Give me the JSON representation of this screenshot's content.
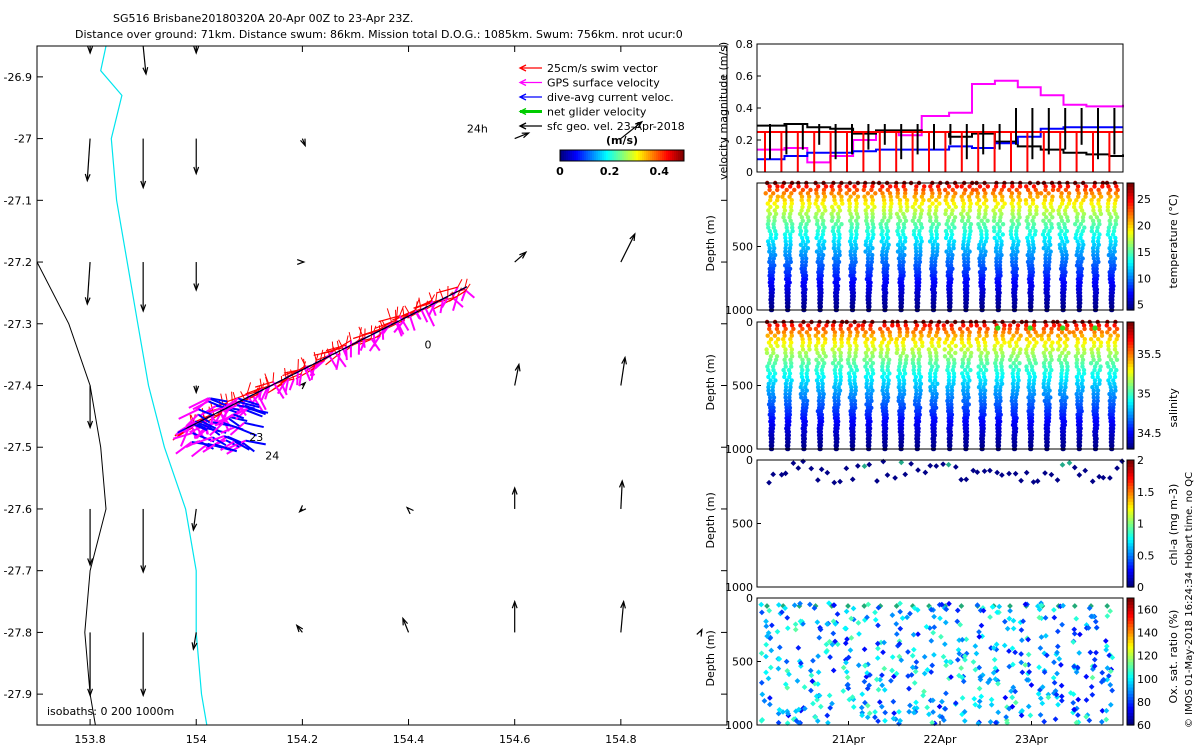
{
  "header": {
    "title_line1": "SG516 Brisbane20180320A 20-Apr 00Z to 23-Apr 23Z.",
    "title_line2": "Distance over ground: 71km. Distance swum: 86km. Mission total D.O.G.: 1085km. Swum: 756km. nrot ucur:0"
  },
  "side_note": "© IMOS 01-May-2018 16:24:34 Hobart time. no QC",
  "colors": {
    "coast": "#00e5ee",
    "isobath": "#000000",
    "swim": "#ff0000",
    "gps": "#ff00ff",
    "dive_avg": "#0000ff",
    "net": "#00cc00",
    "sfc": "#000000"
  },
  "chart_data": [
    {
      "type": "scatter",
      "name": "map",
      "xlim": [
        153.7,
        155.0
      ],
      "ylim": [
        -27.95,
        -26.85
      ],
      "xticks": [
        "153.8",
        "154",
        "154.2",
        "154.4",
        "154.6",
        "154.8"
      ],
      "xtick_values": [
        153.8,
        154.0,
        154.2,
        154.4,
        154.6,
        154.8
      ],
      "yticks": [
        "-26.9",
        "-27",
        "-27.1",
        "-27.2",
        "-27.3",
        "-27.4",
        "-27.5",
        "-27.6",
        "-27.7",
        "-27.8",
        "-27.9"
      ],
      "ytick_values": [
        -26.9,
        -27.0,
        -27.1,
        -27.2,
        -27.3,
        -27.4,
        -27.5,
        -27.6,
        -27.7,
        -27.8,
        -27.9
      ],
      "legend": {
        "placement": "top-right",
        "entries": [
          {
            "label": "25cm/s swim vector",
            "color": "#ff0000"
          },
          {
            "label": "GPS surface velocity",
            "color": "#ff00ff"
          },
          {
            "label": "dive-avg current veloc.",
            "color": "#0000ff"
          },
          {
            "label": "net glider velocity",
            "color": "#00cc00"
          },
          {
            "label": "sfc geo. vel. 23-Apr-2018",
            "color": "#000000"
          }
        ]
      },
      "colorbar": {
        "label": "(m/s)",
        "ticks": [
          "0",
          "0.2",
          "0.4"
        ],
        "tick_values": [
          0,
          0.2,
          0.4
        ],
        "range": [
          0,
          0.5
        ]
      },
      "isobath_note": "isobaths: 0   200  1000m",
      "annotations": [
        {
          "text": "24h",
          "lon": 154.51,
          "lat": -26.99
        },
        {
          "text": "0",
          "lon": 154.43,
          "lat": -27.34
        },
        {
          "text": "23",
          "lon": 154.1,
          "lat": -27.49
        },
        {
          "text": "24",
          "lon": 154.13,
          "lat": -27.52
        }
      ],
      "track": {
        "start": [
          154.51,
          -27.24
        ],
        "end": [
          153.98,
          -27.47
        ]
      },
      "coastline": [
        [
          153.83,
          -26.85
        ],
        [
          153.82,
          -26.89
        ],
        [
          153.86,
          -26.93
        ],
        [
          153.84,
          -27.0
        ],
        [
          153.85,
          -27.1
        ],
        [
          153.87,
          -27.2
        ],
        [
          153.89,
          -27.3
        ],
        [
          153.91,
          -27.4
        ],
        [
          153.94,
          -27.5
        ],
        [
          153.98,
          -27.6
        ],
        [
          154.0,
          -27.7
        ],
        [
          154.0,
          -27.8
        ],
        [
          154.01,
          -27.9
        ],
        [
          154.02,
          -27.95
        ]
      ],
      "isobath_line": [
        [
          153.7,
          -27.2
        ],
        [
          153.76,
          -27.3
        ],
        [
          153.8,
          -27.4
        ],
        [
          153.82,
          -27.5
        ],
        [
          153.83,
          -27.6
        ],
        [
          153.8,
          -27.7
        ],
        [
          153.79,
          -27.8
        ],
        [
          153.8,
          -27.9
        ],
        [
          153.81,
          -27.95
        ]
      ],
      "geo_vectors": [
        {
          "lon": 153.8,
          "lat": -26.85,
          "u": 0.0,
          "v": -0.05
        },
        {
          "lon": 153.9,
          "lat": -26.85,
          "u": 0.02,
          "v": -0.2
        },
        {
          "lon": 154.0,
          "lat": -26.85,
          "u": 0.0,
          "v": -0.05
        },
        {
          "lon": 153.8,
          "lat": -27.0,
          "u": -0.02,
          "v": -0.3
        },
        {
          "lon": 153.9,
          "lat": -27.0,
          "u": 0.0,
          "v": -0.35
        },
        {
          "lon": 154.0,
          "lat": -27.0,
          "u": 0.0,
          "v": -0.25
        },
        {
          "lon": 154.2,
          "lat": -27.0,
          "u": 0.02,
          "v": -0.05
        },
        {
          "lon": 154.6,
          "lat": -27.0,
          "u": 0.1,
          "v": 0.04
        },
        {
          "lon": 154.8,
          "lat": -27.0,
          "u": 0.15,
          "v": 0.12
        },
        {
          "lon": 153.8,
          "lat": -27.2,
          "u": -0.02,
          "v": -0.3
        },
        {
          "lon": 153.9,
          "lat": -27.2,
          "u": 0.0,
          "v": -0.35
        },
        {
          "lon": 154.0,
          "lat": -27.2,
          "u": 0.0,
          "v": -0.2
        },
        {
          "lon": 154.2,
          "lat": -27.2,
          "u": 0.01,
          "v": 0.0
        },
        {
          "lon": 154.6,
          "lat": -27.2,
          "u": 0.08,
          "v": 0.07
        },
        {
          "lon": 154.8,
          "lat": -27.2,
          "u": 0.1,
          "v": 0.2
        },
        {
          "lon": 154.0,
          "lat": -27.4,
          "u": 0.0,
          "v": -0.05
        },
        {
          "lon": 154.2,
          "lat": -27.4,
          "u": 0.02,
          "v": 0.02
        },
        {
          "lon": 154.6,
          "lat": -27.4,
          "u": 0.03,
          "v": 0.15
        },
        {
          "lon": 154.8,
          "lat": -27.4,
          "u": 0.03,
          "v": 0.2
        },
        {
          "lon": 153.8,
          "lat": -27.4,
          "u": 0.0,
          "v": -0.3
        },
        {
          "lon": 153.8,
          "lat": -27.6,
          "u": 0.0,
          "v": -0.4
        },
        {
          "lon": 153.9,
          "lat": -27.6,
          "u": 0.0,
          "v": -0.45
        },
        {
          "lon": 154.0,
          "lat": -27.6,
          "u": -0.02,
          "v": -0.15
        },
        {
          "lon": 154.2,
          "lat": -27.6,
          "u": -0.02,
          "v": -0.02
        },
        {
          "lon": 154.4,
          "lat": -27.6,
          "u": -0.01,
          "v": 0.01
        },
        {
          "lon": 154.6,
          "lat": -27.6,
          "u": 0.0,
          "v": 0.15
        },
        {
          "lon": 154.8,
          "lat": -27.6,
          "u": 0.01,
          "v": 0.2
        },
        {
          "lon": 153.8,
          "lat": -27.8,
          "u": 0.0,
          "v": -0.45
        },
        {
          "lon": 153.9,
          "lat": -27.8,
          "u": 0.0,
          "v": -0.45
        },
        {
          "lon": 154.0,
          "lat": -27.8,
          "u": -0.02,
          "v": -0.12
        },
        {
          "lon": 154.2,
          "lat": -27.8,
          "u": -0.04,
          "v": 0.05
        },
        {
          "lon": 154.4,
          "lat": -27.8,
          "u": -0.04,
          "v": 0.1
        },
        {
          "lon": 154.6,
          "lat": -27.8,
          "u": 0.0,
          "v": 0.22
        },
        {
          "lon": 154.8,
          "lat": -27.8,
          "u": 0.02,
          "v": 0.22
        },
        {
          "lon": 154.95,
          "lat": -27.8,
          "u": 0.01,
          "v": 0.02
        }
      ]
    },
    {
      "type": "line",
      "name": "velocity",
      "ylabel": "velocity magnitude (m/s)",
      "ylim": [
        0,
        0.8
      ],
      "yticks": [
        "0",
        "0.2",
        "0.4",
        "0.6",
        "0.8"
      ],
      "ytick_values": [
        0,
        0.2,
        0.4,
        0.6,
        0.8
      ],
      "xlim": [
        0,
        4
      ],
      "series": [
        {
          "color": "#ff00ff",
          "x": [
            0.0,
            0.3,
            0.55,
            0.8,
            1.05,
            1.3,
            1.55,
            1.8,
            2.1,
            2.35,
            2.6,
            2.85,
            3.1,
            3.35,
            3.6,
            3.85,
            4.0
          ],
          "values": [
            0.14,
            0.15,
            0.06,
            0.1,
            0.2,
            0.25,
            0.23,
            0.35,
            0.37,
            0.55,
            0.57,
            0.53,
            0.48,
            0.42,
            0.41,
            0.41,
            0.42
          ]
        },
        {
          "color": "#000000",
          "x": [
            0.0,
            0.3,
            0.55,
            0.8,
            1.05,
            1.3,
            1.55,
            1.8,
            2.1,
            2.35,
            2.6,
            2.85,
            3.1,
            3.35,
            3.6,
            3.85,
            4.0
          ],
          "values": [
            0.29,
            0.3,
            0.28,
            0.27,
            0.24,
            0.26,
            0.26,
            0.25,
            0.22,
            0.24,
            0.19,
            0.16,
            0.14,
            0.12,
            0.11,
            0.1,
            0.11
          ]
        },
        {
          "color": "#0000ff",
          "x": [
            0.0,
            0.3,
            0.55,
            0.8,
            1.05,
            1.3,
            1.55,
            1.8,
            2.1,
            2.35,
            2.6,
            2.85,
            3.1,
            3.35,
            3.6,
            3.85,
            4.0
          ],
          "values": [
            0.08,
            0.1,
            0.12,
            0.12,
            0.13,
            0.14,
            0.14,
            0.14,
            0.16,
            0.15,
            0.18,
            0.22,
            0.27,
            0.28,
            0.28,
            0.28,
            0.28
          ]
        },
        {
          "color": "#ff0000",
          "x": [
            0.0,
            4.0
          ],
          "values": [
            0.25,
            0.25
          ]
        }
      ]
    },
    {
      "type": "scatter",
      "name": "temperature",
      "ylabel": "Depth (m)",
      "ylim": [
        1000,
        0
      ],
      "yticks": [
        "500",
        "1000"
      ],
      "ytick_values": [
        500,
        1000
      ],
      "colorbar": {
        "label": "temperature (°C)",
        "ticks": [
          "5",
          "10",
          "15",
          "20",
          "25"
        ],
        "tick_values": [
          5,
          10,
          15,
          20,
          25
        ],
        "range": [
          4,
          28
        ]
      },
      "profiles": 22,
      "max_depth": 1000
    },
    {
      "type": "scatter",
      "name": "salinity",
      "ylabel": "Depth (m)",
      "ylim": [
        1000,
        0
      ],
      "yticks": [
        "0",
        "500",
        "1000"
      ],
      "ytick_values": [
        0,
        500,
        1000
      ],
      "colorbar": {
        "label": "salinity",
        "ticks": [
          "34.5",
          "35",
          "35.5"
        ],
        "tick_values": [
          34.5,
          35,
          35.5
        ],
        "range": [
          34.3,
          35.9
        ]
      },
      "profiles": 22,
      "max_depth": 1000
    },
    {
      "type": "scatter",
      "name": "chlorophyll",
      "ylabel": "Depth (m)",
      "ylim": [
        1000,
        0
      ],
      "yticks": [
        "0",
        "500",
        "1000"
      ],
      "ytick_values": [
        0,
        500,
        1000
      ],
      "colorbar": {
        "label": "chl-a (mg m-3)",
        "ticks": [
          "0",
          "0.5",
          "1",
          "1.5",
          "2"
        ],
        "tick_values": [
          0,
          0.5,
          1,
          1.5,
          2
        ],
        "range": [
          0,
          2
        ]
      },
      "max_depth": 180
    },
    {
      "type": "scatter",
      "name": "oxygen",
      "ylabel": "Depth (m)",
      "ylim": [
        1000,
        0
      ],
      "yticks": [
        "0",
        "500",
        "1000"
      ],
      "ytick_values": [
        0,
        500,
        1000
      ],
      "colorbar": {
        "label": "Ox. sat. ratio (%)",
        "ticks": [
          "60",
          "80",
          "100",
          "120",
          "140",
          "160"
        ],
        "tick_values": [
          60,
          80,
          100,
          120,
          140,
          160
        ],
        "range": [
          60,
          170
        ]
      },
      "xticks": [
        "21Apr",
        "22Apr",
        "23Apr"
      ],
      "xtick_values": [
        1,
        2,
        3
      ],
      "xlim": [
        0,
        4
      ]
    }
  ]
}
